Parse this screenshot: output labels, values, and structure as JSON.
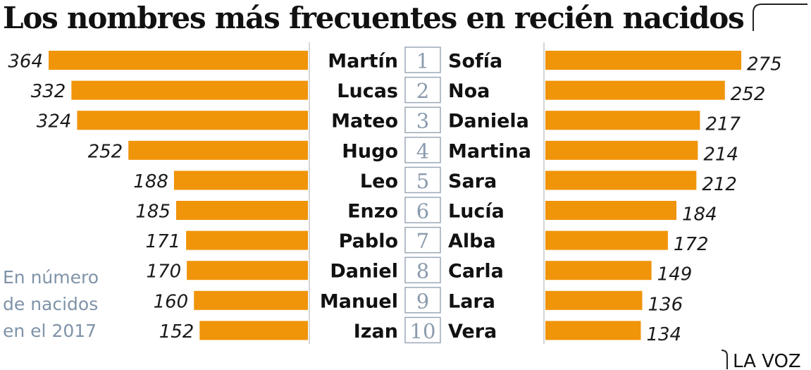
{
  "title": "Los nombres más frecuentes en recién nacidos",
  "note_lines": [
    "En número",
    "de nacidos",
    "en el 2017"
  ],
  "credit": "LA VOZ",
  "colors": {
    "bar": "#f0940a",
    "rank_text": "#8a9bad",
    "rank_border": "#9aa8b8",
    "note_text": "#7f93a8"
  },
  "chart_data": {
    "type": "bar",
    "orientation": "horizontal",
    "ranks": [
      "1",
      "2",
      "3",
      "4",
      "5",
      "6",
      "7",
      "8",
      "9",
      "10"
    ],
    "boys": {
      "names": [
        "Martín",
        "Lucas",
        "Mateo",
        "Hugo",
        "Leo",
        "Enzo",
        "Pablo",
        "Daniel",
        "Manuel",
        "Izan"
      ],
      "values": [
        364,
        332,
        324,
        252,
        188,
        185,
        171,
        170,
        160,
        152
      ]
    },
    "girls": {
      "names": [
        "Sofía",
        "Noa",
        "Daniela",
        "Martina",
        "Sara",
        "Lucía",
        "Alba",
        "Carla",
        "Lara",
        "Vera"
      ],
      "values": [
        275,
        252,
        217,
        214,
        212,
        184,
        172,
        149,
        136,
        134
      ]
    },
    "xlim": [
      0,
      364
    ]
  }
}
